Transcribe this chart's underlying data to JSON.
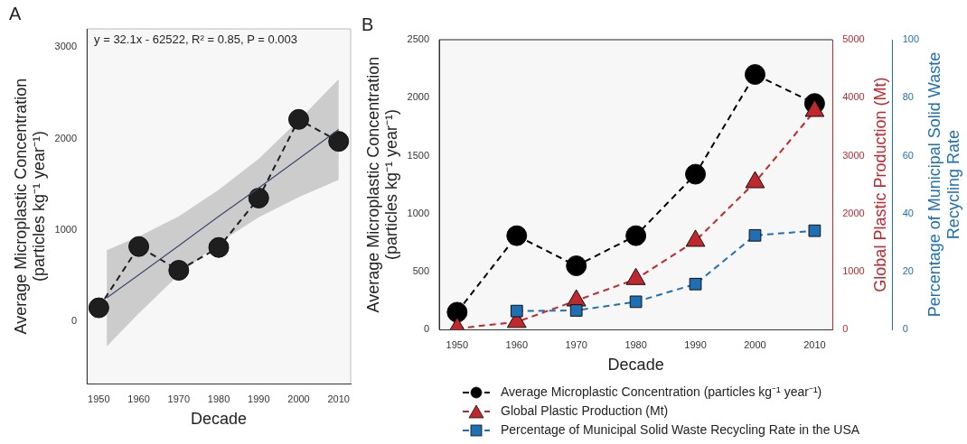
{
  "chart_data": [
    {
      "type": "line",
      "title": "A",
      "xlabel": "Decade",
      "ylabel": "Average Microplastic Concentration\n(particles kg⁻¹ year⁻¹)",
      "x": [
        1950,
        1960,
        1970,
        1980,
        1990,
        2000,
        2010
      ],
      "series": [
        {
          "color": "#1e1e1e",
          "marker": "circle",
          "line_style": "dashed",
          "values": [
            150,
            820,
            560,
            810,
            1350,
            2210,
            1970
          ]
        },
        {
          "type": "line",
          "color": "#3b4a6b",
          "marker": "none",
          "line_style": "solid",
          "x": [
            1952,
            1960,
            1970,
            1980,
            1990,
            2000,
            2010
          ],
          "values": [
            260,
            510,
            830,
            1150,
            1460,
            1780,
            2100
          ],
          "lower": [
            -270,
            90,
            510,
            860,
            1140,
            1360,
            1550
          ],
          "upper": [
            780,
            930,
            1150,
            1440,
            1780,
            2200,
            2650
          ]
        }
      ],
      "xlim": [
        1947,
        2013
      ],
      "xticks": [
        1950,
        1960,
        1970,
        1980,
        1990,
        2000,
        2010
      ],
      "ylim": [
        -680,
        3200
      ],
      "yticks": [
        0,
        1000,
        2000,
        3000
      ],
      "annotations": [
        "y = 32.1x - 62522, R² = 0.85, P = 0.003"
      ],
      "grid": false,
      "legend": false
    },
    {
      "type": "line",
      "title": "B",
      "xlabel": "Decade",
      "ylabel": "Average Microplastic Concentration\n(particles kg⁻¹ year⁻¹)",
      "y2label": "Global Plastic Production (Mt)",
      "y3label": "Percentage of Municipal Solid Waste\nRecycling Rate",
      "x": [
        1950,
        1960,
        1970,
        1980,
        1990,
        2000,
        2010
      ],
      "series": [
        {
          "name": "Average Microplastic Concentration (particles kg⁻¹ year⁻¹)",
          "color": "#000000",
          "marker": "circle",
          "values": [
            150,
            810,
            550,
            810,
            1340,
            2200,
            1950
          ]
        },
        {
          "name": "Global Plastic Production (Mt)",
          "color": "#c0282d",
          "marker": "triangle",
          "axis": "y2",
          "values": [
            20,
            130,
            500,
            870,
            1530,
            2540,
            3770
          ]
        },
        {
          "name": "Percentage of Municipal Solid Waste Recycling Rate in the USA",
          "color": "#1f6fb5",
          "marker": "square",
          "axis": "y3",
          "values": [
            null,
            6.4,
            6.6,
            9.6,
            15.7,
            32.5,
            34.1
          ]
        }
      ],
      "xlim": [
        1947,
        2013
      ],
      "xticks": [
        1950,
        1960,
        1970,
        1980,
        1990,
        2000,
        2010
      ],
      "ylim": [
        0,
        2500
      ],
      "yticks": [
        0,
        500,
        1000,
        1500,
        2000,
        2500
      ],
      "y2lim": [
        0,
        5000
      ],
      "y2ticks": [
        0,
        1000,
        2000,
        3000,
        4000,
        5000
      ],
      "y3lim": [
        0,
        100
      ],
      "y3ticks": [
        0,
        20,
        40,
        60,
        80,
        100
      ],
      "line_style": "dashed",
      "grid": false,
      "legend": "bottom"
    }
  ]
}
